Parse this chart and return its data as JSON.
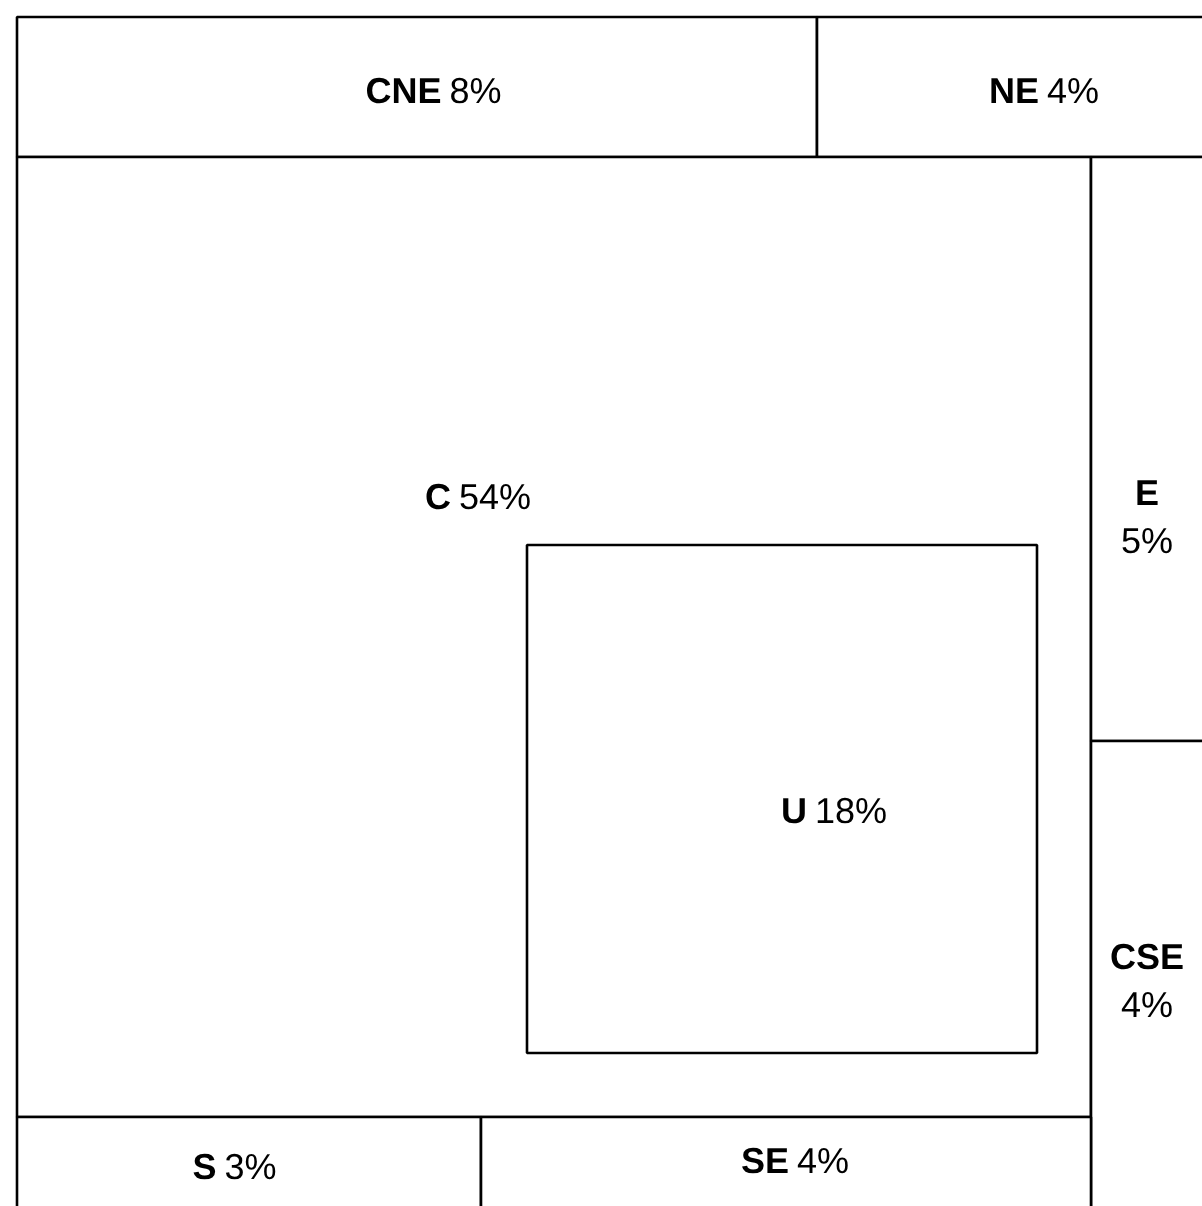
{
  "chart_data": {
    "type": "other",
    "categories": [
      "CNE",
      "NE",
      "C",
      "E",
      "U",
      "CSE",
      "S",
      "SE"
    ],
    "values": [
      8,
      4,
      54,
      5,
      18,
      4,
      3,
      4
    ],
    "value_labels": [
      "8%",
      "4%",
      "54%",
      "5%",
      "18%",
      "4%",
      "3%",
      "4%"
    ]
  }
}
